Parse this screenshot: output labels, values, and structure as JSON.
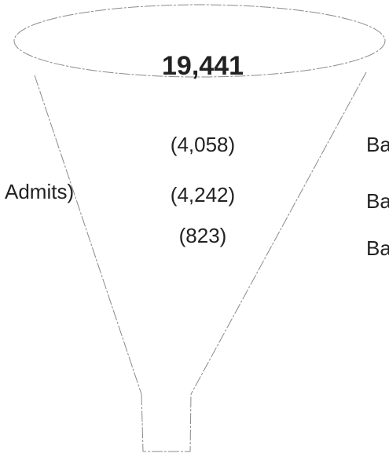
{
  "funnel": {
    "top_value": "19,441",
    "levels": [
      "(4,058)",
      "(4,242)",
      "(823)"
    ],
    "left_label": "Admits)",
    "right_labels": [
      "Ba",
      "Ba",
      "Ba"
    ]
  }
}
